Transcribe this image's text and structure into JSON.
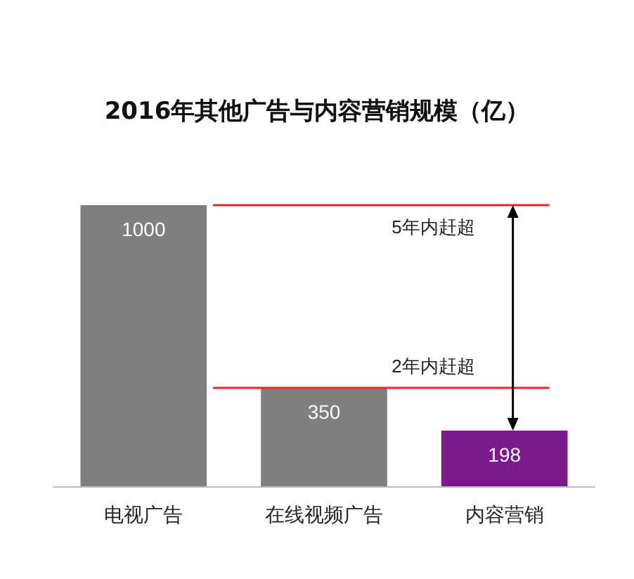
{
  "chart_data": {
    "type": "bar",
    "title": "2016年其他广告与内容营销规模（亿）",
    "categories": [
      "电视广告",
      "在线视频广告",
      "内容营销"
    ],
    "values": [
      1000,
      350,
      198
    ],
    "colors": [
      "#7f7f7f",
      "#7f7f7f",
      "#7b1a8c"
    ],
    "data_labels": true,
    "ref_lines": [
      {
        "axis": "y",
        "value": 1000,
        "label": "5年内赶超",
        "color": "#e8262a"
      },
      {
        "axis": "y",
        "value": 350,
        "label": "2年内赶超",
        "color": "#e8262a"
      }
    ],
    "grid": false
  }
}
